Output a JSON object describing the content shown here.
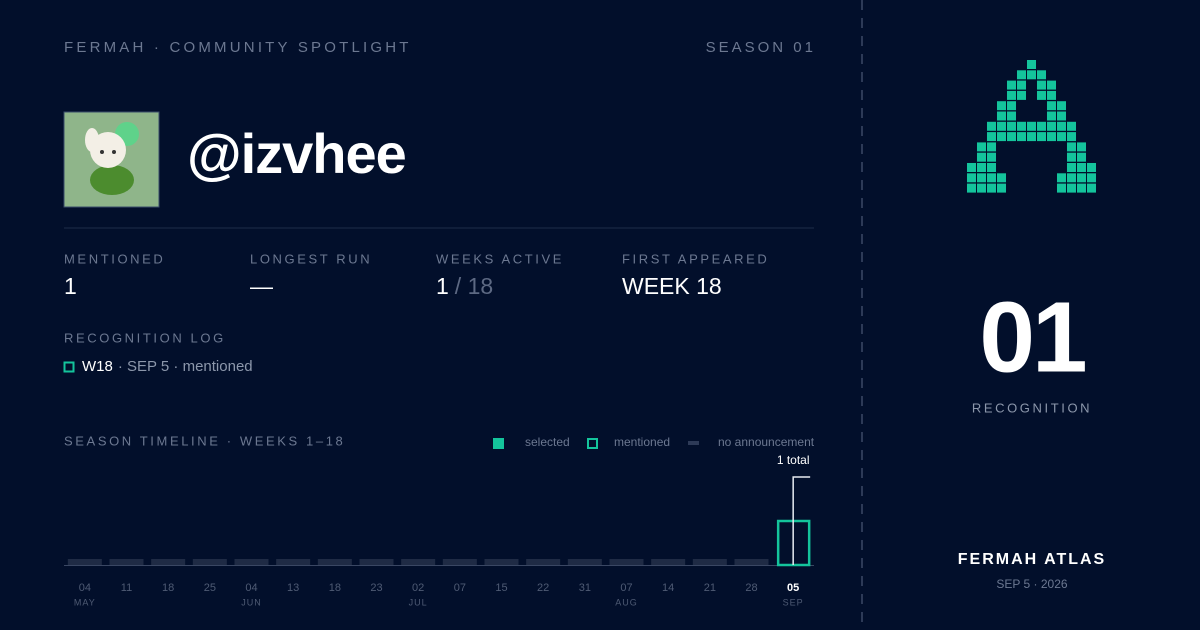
{
  "header": {
    "brand": "FERMAH · COMMUNITY SPOTLIGHT",
    "season": "SEASON 01"
  },
  "profile": {
    "handle": "@izvhee"
  },
  "stats": [
    {
      "label": "MENTIONED",
      "value": "1"
    },
    {
      "label": "LONGEST RUN",
      "value": "—"
    },
    {
      "label": "WEEKS ACTIVE",
      "value": "1",
      "total": "/ 18"
    },
    {
      "label": "FIRST APPEARED",
      "value": "WEEK 18"
    }
  ],
  "recognition_log": {
    "title": "RECOGNITION LOG",
    "entries": [
      {
        "week": "W18",
        "detail": "· SEP 5 · mentioned"
      }
    ]
  },
  "timeline": {
    "title": "SEASON TIMELINE · WEEKS 1–18",
    "legend": [
      "selected",
      "mentioned",
      "no announcement"
    ],
    "total_label": "1 total",
    "weeks": [
      {
        "day": "04",
        "month": "MAY",
        "status": "no announcement"
      },
      {
        "day": "11",
        "status": "no announcement"
      },
      {
        "day": "18",
        "status": "no announcement"
      },
      {
        "day": "25",
        "status": "no announcement"
      },
      {
        "day": "04",
        "month": "JUN",
        "status": "no announcement"
      },
      {
        "day": "13",
        "status": "no announcement"
      },
      {
        "day": "18",
        "status": "no announcement"
      },
      {
        "day": "23",
        "status": "no announcement"
      },
      {
        "day": "02",
        "month": "JUL",
        "status": "no announcement"
      },
      {
        "day": "07",
        "status": "no announcement"
      },
      {
        "day": "15",
        "status": "no announcement"
      },
      {
        "day": "22",
        "status": "no announcement"
      },
      {
        "day": "31",
        "status": "no announcement"
      },
      {
        "day": "07",
        "month": "AUG",
        "status": "no announcement"
      },
      {
        "day": "14",
        "status": "no announcement"
      },
      {
        "day": "21",
        "status": "no announcement"
      },
      {
        "day": "28",
        "status": "no announcement"
      },
      {
        "day": "05",
        "month": "SEP",
        "status": "mentioned"
      }
    ]
  },
  "sidebar": {
    "count": "01",
    "count_label": "RECOGNITION",
    "footer_title": "FERMAH ATLAS",
    "footer_date": "SEP 5 · 2026"
  }
}
